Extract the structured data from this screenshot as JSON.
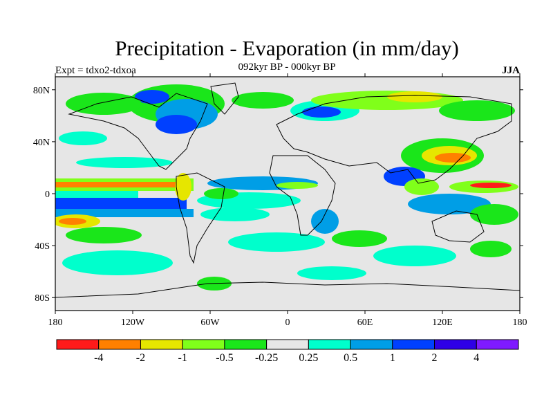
{
  "title": "Precipitation - Evaporation (in mm/day)",
  "subtitle": "092kyr BP - 000kyr BP",
  "left_label": "Expt = tdxo2-tdxoa",
  "right_label": "JJA",
  "lat_ticks": [
    {
      "value": 80,
      "label": "80N"
    },
    {
      "value": 40,
      "label": "40N"
    },
    {
      "value": 0,
      "label": "0"
    },
    {
      "value": -40,
      "label": "40S"
    },
    {
      "value": -80,
      "label": "80S"
    }
  ],
  "lon_ticks": [
    {
      "value": -180,
      "label": "180"
    },
    {
      "value": -120,
      "label": "120W"
    },
    {
      "value": -60,
      "label": "60W"
    },
    {
      "value": 0,
      "label": "0"
    },
    {
      "value": 60,
      "label": "60E"
    },
    {
      "value": 120,
      "label": "120E"
    },
    {
      "value": 180,
      "label": "180"
    }
  ],
  "colorbar": {
    "colors": [
      "#ff1a1a",
      "#ff8000",
      "#e6e600",
      "#80ff1a",
      "#1ae61a",
      "#e6e6e6",
      "#00ffcc",
      "#009ee6",
      "#0040ff",
      "#2e00e6",
      "#7f1aff"
    ],
    "labels": [
      "-4",
      "-2",
      "-1",
      "-0.5",
      "-0.25",
      "0.25",
      "0.5",
      "1",
      "2",
      "4"
    ]
  }
}
